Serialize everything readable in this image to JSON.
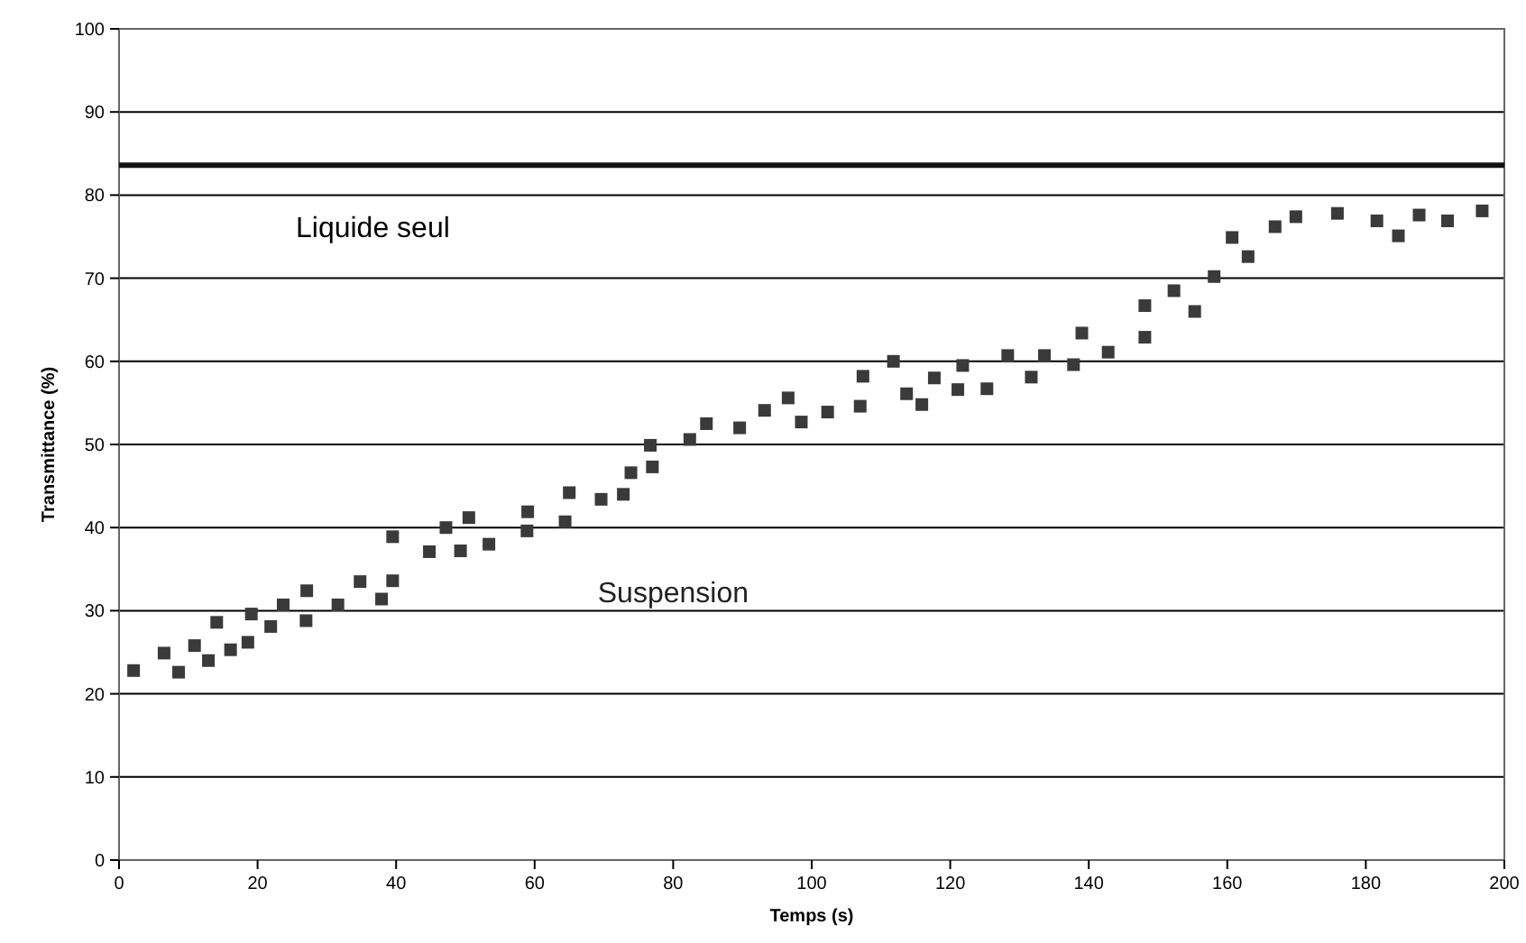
{
  "chart_data": {
    "type": "scatter",
    "xlabel": "Temps (s)",
    "ylabel": "Transmittance (%)",
    "xlim": [
      0,
      200
    ],
    "xticks": [
      0,
      20,
      40,
      60,
      80,
      100,
      120,
      140,
      160,
      180,
      200
    ],
    "ylim": [
      0,
      100
    ],
    "yticks": [
      0,
      10,
      20,
      30,
      40,
      50,
      60,
      70,
      80,
      90,
      100
    ],
    "grid": "y",
    "marker": "square",
    "legend": false,
    "ref_lines": [
      {
        "axis": "y",
        "value": 83.6,
        "label": "Liquide seul",
        "color": "#111111"
      }
    ],
    "series": [
      {
        "name": "Suspension",
        "color": "#3a3a3a",
        "x": [
          2.1,
          6.5,
          8.6,
          10.9,
          12.9,
          14.1,
          16.1,
          18.6,
          19.1,
          21.9,
          23.7,
          27.0,
          27.1,
          31.6,
          34.8,
          37.9,
          39.5,
          39.5,
          44.8,
          47.2,
          49.3,
          50.5,
          53.4,
          58.9,
          59.0,
          64.4,
          65.0,
          69.6,
          72.8,
          73.9,
          77.0,
          76.7,
          82.4,
          84.8,
          89.6,
          93.2,
          96.6,
          98.5,
          102.3,
          107.0,
          107.4,
          111.8,
          113.7,
          115.9,
          117.7,
          121.1,
          121.8,
          125.3,
          128.3,
          131.7,
          133.6,
          137.8,
          139.0,
          142.8,
          148.1,
          148.1,
          152.3,
          155.3,
          158.1,
          160.7,
          163.0,
          166.9,
          169.9,
          175.9,
          181.6,
          184.7,
          187.7,
          191.8,
          196.8
        ],
        "values": [
          22.8,
          24.9,
          22.6,
          25.8,
          24.0,
          28.6,
          25.3,
          26.2,
          29.6,
          28.1,
          30.7,
          28.8,
          32.4,
          30.7,
          33.5,
          31.4,
          33.6,
          38.9,
          37.1,
          40.0,
          37.2,
          41.2,
          38.0,
          39.6,
          41.9,
          40.7,
          44.2,
          43.4,
          44.0,
          46.6,
          47.3,
          49.9,
          50.6,
          52.5,
          52.0,
          54.1,
          55.6,
          52.7,
          53.9,
          54.6,
          58.2,
          60.0,
          56.1,
          54.8,
          58.0,
          56.6,
          59.5,
          56.7,
          60.7,
          58.1,
          60.7,
          59.6,
          63.4,
          61.1,
          62.9,
          66.7,
          68.5,
          66.0,
          70.2,
          74.9,
          72.6,
          76.2,
          77.4,
          77.8,
          76.9,
          75.1,
          77.6,
          76.9,
          78.1
        ]
      }
    ]
  }
}
